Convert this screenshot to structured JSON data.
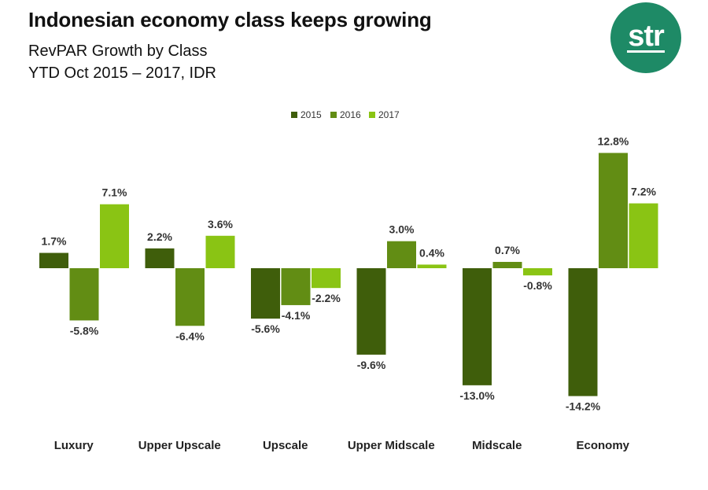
{
  "header": {
    "title": "Indonesian economy class keeps growing",
    "subtitle_line1": "RevPAR Growth by Class",
    "subtitle_line2": "YTD Oct 2015 – 2017, IDR"
  },
  "logo": {
    "text": "str",
    "color": "#1e8a66"
  },
  "chart_data": {
    "type": "bar",
    "title": "Indonesian economy class keeps growing",
    "subtitle": "RevPAR Growth by Class, YTD Oct 2015 – 2017, IDR",
    "categories": [
      "Luxury",
      "Upper Upscale",
      "Upscale",
      "Upper Midscale",
      "Midscale",
      "Economy"
    ],
    "series": [
      {
        "name": "2015",
        "color": "#3f5e0b",
        "values": [
          1.7,
          2.2,
          -5.6,
          -9.6,
          -13.0,
          -14.2
        ]
      },
      {
        "name": "2016",
        "color": "#628d14",
        "values": [
          -5.8,
          -6.4,
          -4.1,
          3.0,
          0.7,
          12.8
        ]
      },
      {
        "name": "2017",
        "color": "#8ac414",
        "values": [
          7.1,
          3.6,
          -2.2,
          0.4,
          -0.8,
          7.2
        ]
      }
    ],
    "value_suffix": "%",
    "ylim": [
      -15,
      14
    ],
    "grid": false,
    "legend_position": "top-center",
    "xlabel": "",
    "ylabel": ""
  }
}
